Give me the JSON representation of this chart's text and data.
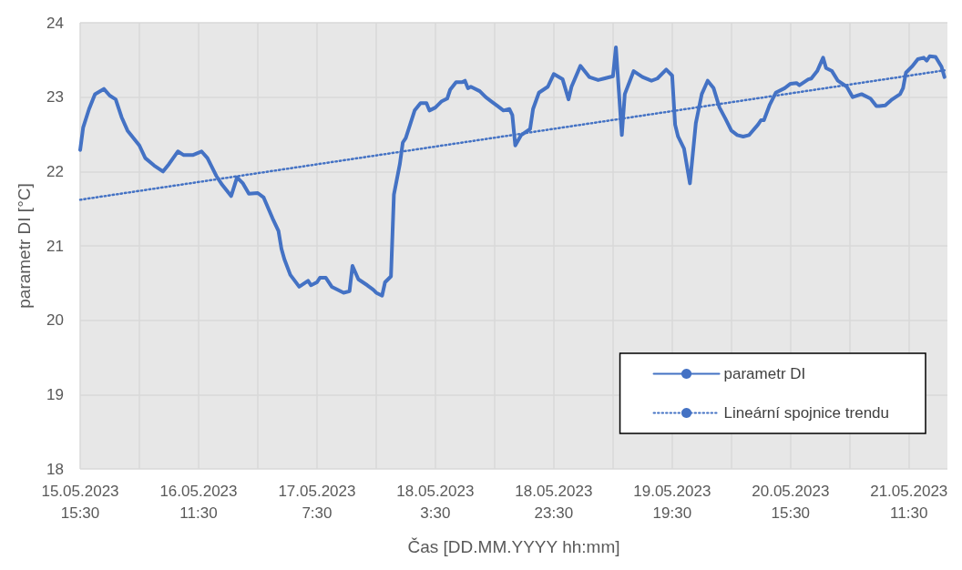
{
  "chart_data": {
    "type": "line",
    "xlabel": "Čas [DD.MM.YYYY hh:mm]",
    "ylabel": "parametr DI [°C]",
    "xlim": [
      "2023-05-15T15:30",
      "2023-05-21T18:00"
    ],
    "ylim": [
      18,
      24
    ],
    "yticks": [
      18,
      19,
      20,
      21,
      22,
      23,
      24
    ],
    "xticks": [
      {
        "value": "2023-05-15T15:30",
        "label": "15.05.2023\n15:30"
      },
      {
        "value": "2023-05-16T01:30",
        "label": null
      },
      {
        "value": "2023-05-16T11:30",
        "label": "16.05.2023\n11:30"
      },
      {
        "value": "2023-05-16T21:30",
        "label": null
      },
      {
        "value": "2023-05-17T07:30",
        "label": "17.05.2023\n7:30"
      },
      {
        "value": "2023-05-17T17:30",
        "label": null
      },
      {
        "value": "2023-05-18T03:30",
        "label": "18.05.2023\n3:30"
      },
      {
        "value": "2023-05-18T13:30",
        "label": null
      },
      {
        "value": "2023-05-18T23:30",
        "label": "18.05.2023\n23:30"
      },
      {
        "value": "2023-05-19T09:30",
        "label": null
      },
      {
        "value": "2023-05-19T19:30",
        "label": "19.05.2023\n19:30"
      },
      {
        "value": "2023-05-20T05:30",
        "label": null
      },
      {
        "value": "2023-05-20T15:30",
        "label": "20.05.2023\n15:30"
      },
      {
        "value": "2023-05-21T01:30",
        "label": null
      },
      {
        "value": "2023-05-21T11:30",
        "label": "21.05.2023\n11:30"
      }
    ],
    "grid": true,
    "legend": "bottom right",
    "marker": "none",
    "series": [
      {
        "name": "parametr DI",
        "color": "#4472c4",
        "line_style": "solid",
        "x": [
          "2023-05-15T15:30",
          "2023-05-15T16:00",
          "2023-05-15T17:00",
          "2023-05-15T18:00",
          "2023-05-15T19:30",
          "2023-05-15T20:30",
          "2023-05-15T21:30",
          "2023-05-15T22:30",
          "2023-05-15T23:30",
          "2023-05-16T01:30",
          "2023-05-16T02:30",
          "2023-05-16T04:00",
          "2023-05-16T05:30",
          "2023-05-16T06:30",
          "2023-05-16T08:00",
          "2023-05-16T09:00",
          "2023-05-16T10:30",
          "2023-05-16T12:00",
          "2023-05-16T13:00",
          "2023-05-16T14:30",
          "2023-05-16T15:30",
          "2023-05-16T17:00",
          "2023-05-16T18:00",
          "2023-05-16T19:00",
          "2023-05-16T20:00",
          "2023-05-16T21:30",
          "2023-05-16T22:30",
          "2023-05-17T00:00",
          "2023-05-17T01:00",
          "2023-05-17T01:30",
          "2023-05-17T02:00",
          "2023-05-17T03:00",
          "2023-05-17T04:30",
          "2023-05-17T06:00",
          "2023-05-17T06:30",
          "2023-05-17T07:30",
          "2023-05-17T08:00",
          "2023-05-17T09:00",
          "2023-05-17T10:00",
          "2023-05-17T12:00",
          "2023-05-17T13:00",
          "2023-05-17T13:30",
          "2023-05-17T14:30",
          "2023-05-17T16:00",
          "2023-05-17T17:00",
          "2023-05-17T17:30",
          "2023-05-17T18:30",
          "2023-05-17T19:00",
          "2023-05-17T20:00",
          "2023-05-17T20:30",
          "2023-05-17T21:30",
          "2023-05-17T22:00",
          "2023-05-17T22:30",
          "2023-05-18T00:00",
          "2023-05-18T01:00",
          "2023-05-18T02:00",
          "2023-05-18T02:30",
          "2023-05-18T03:30",
          "2023-05-18T04:30",
          "2023-05-18T05:30",
          "2023-05-18T06:00",
          "2023-05-18T07:00",
          "2023-05-18T08:00",
          "2023-05-18T08:30",
          "2023-05-18T09:00",
          "2023-05-18T09:30",
          "2023-05-18T11:00",
          "2023-05-18T12:00",
          "2023-05-18T13:00",
          "2023-05-18T14:00",
          "2023-05-18T15:00",
          "2023-05-18T16:00",
          "2023-05-18T16:30",
          "2023-05-18T17:00",
          "2023-05-18T18:00",
          "2023-05-18T19:30",
          "2023-05-18T20:00",
          "2023-05-18T21:00",
          "2023-05-18T22:30",
          "2023-05-18T23:30",
          "2023-05-19T01:00",
          "2023-05-19T02:00",
          "2023-05-19T02:30",
          "2023-05-19T04:00",
          "2023-05-19T05:30",
          "2023-05-19T07:00",
          "2023-05-19T08:00",
          "2023-05-19T09:30",
          "2023-05-19T10:00",
          "2023-05-19T11:00",
          "2023-05-19T11:30",
          "2023-05-19T13:00",
          "2023-05-19T14:30",
          "2023-05-19T16:00",
          "2023-05-19T17:00",
          "2023-05-19T18:30",
          "2023-05-19T19:30",
          "2023-05-19T20:00",
          "2023-05-19T20:30",
          "2023-05-19T21:30",
          "2023-05-19T22:30",
          "2023-05-19T23:30",
          "2023-05-20T00:30",
          "2023-05-20T01:30",
          "2023-05-20T02:30",
          "2023-05-20T03:30",
          "2023-05-20T04:30",
          "2023-05-20T05:30",
          "2023-05-20T06:30",
          "2023-05-20T07:30",
          "2023-05-20T08:30",
          "2023-05-20T10:00",
          "2023-05-20T10:30",
          "2023-05-20T11:00",
          "2023-05-20T12:00",
          "2023-05-20T13:00",
          "2023-05-20T14:30",
          "2023-05-20T15:30",
          "2023-05-20T16:30",
          "2023-05-20T17:00",
          "2023-05-20T18:30",
          "2023-05-20T19:00",
          "2023-05-20T20:00",
          "2023-05-20T21:00",
          "2023-05-20T21:30",
          "2023-05-20T22:30",
          "2023-05-20T23:30",
          "2023-05-21T01:00",
          "2023-05-21T02:00",
          "2023-05-21T03:30",
          "2023-05-21T05:00",
          "2023-05-21T06:00",
          "2023-05-21T06:30",
          "2023-05-21T07:30",
          "2023-05-21T08:30",
          "2023-05-21T10:00",
          "2023-05-21T10:30",
          "2023-05-21T11:00",
          "2023-05-21T12:00",
          "2023-05-21T13:00",
          "2023-05-21T14:00",
          "2023-05-21T14:30",
          "2023-05-21T15:00",
          "2023-05-21T16:00",
          "2023-05-21T17:00",
          "2023-05-21T17:30"
        ],
        "values": [
          22.29,
          22.59,
          22.84,
          23.04,
          23.11,
          23.02,
          22.97,
          22.73,
          22.55,
          22.35,
          22.18,
          22.08,
          22.0,
          22.1,
          22.27,
          22.22,
          22.22,
          22.27,
          22.18,
          21.94,
          21.82,
          21.67,
          21.92,
          21.84,
          21.7,
          21.71,
          21.65,
          21.37,
          21.2,
          20.96,
          20.82,
          20.61,
          20.45,
          20.53,
          20.47,
          20.51,
          20.57,
          20.57,
          20.45,
          20.37,
          20.39,
          20.73,
          20.55,
          20.47,
          20.41,
          20.37,
          20.33,
          20.51,
          20.59,
          21.69,
          22.1,
          22.39,
          22.45,
          22.82,
          22.92,
          22.92,
          22.82,
          22.86,
          22.94,
          22.98,
          23.1,
          23.2,
          23.2,
          23.22,
          23.12,
          23.14,
          23.08,
          23.0,
          22.94,
          22.88,
          22.82,
          22.84,
          22.76,
          22.35,
          22.49,
          22.57,
          22.84,
          23.06,
          23.14,
          23.31,
          23.24,
          22.97,
          23.14,
          23.42,
          23.27,
          23.23,
          23.25,
          23.28,
          23.67,
          22.49,
          23.04,
          23.35,
          23.27,
          23.22,
          23.25,
          23.37,
          23.29,
          22.63,
          22.47,
          22.31,
          21.84,
          22.65,
          23.04,
          23.22,
          23.12,
          22.86,
          22.71,
          22.55,
          22.49,
          22.47,
          22.49,
          22.63,
          22.69,
          22.69,
          22.9,
          23.06,
          23.12,
          23.18,
          23.19,
          23.16,
          23.24,
          23.25,
          23.35,
          23.53,
          23.39,
          23.35,
          23.22,
          23.14,
          23.0,
          23.04,
          22.98,
          22.88,
          22.88,
          22.89,
          22.96,
          23.04,
          23.12,
          23.33,
          23.41,
          23.51,
          23.53,
          23.49,
          23.55,
          23.54,
          23.41,
          23.27
        ]
      },
      {
        "name": "Lineární spojnice trendu",
        "color": "#4472c4",
        "line_style": "dotted",
        "x": [
          "2023-05-15T15:30",
          "2023-05-21T17:30"
        ],
        "values": [
          21.62,
          23.36
        ]
      }
    ]
  }
}
